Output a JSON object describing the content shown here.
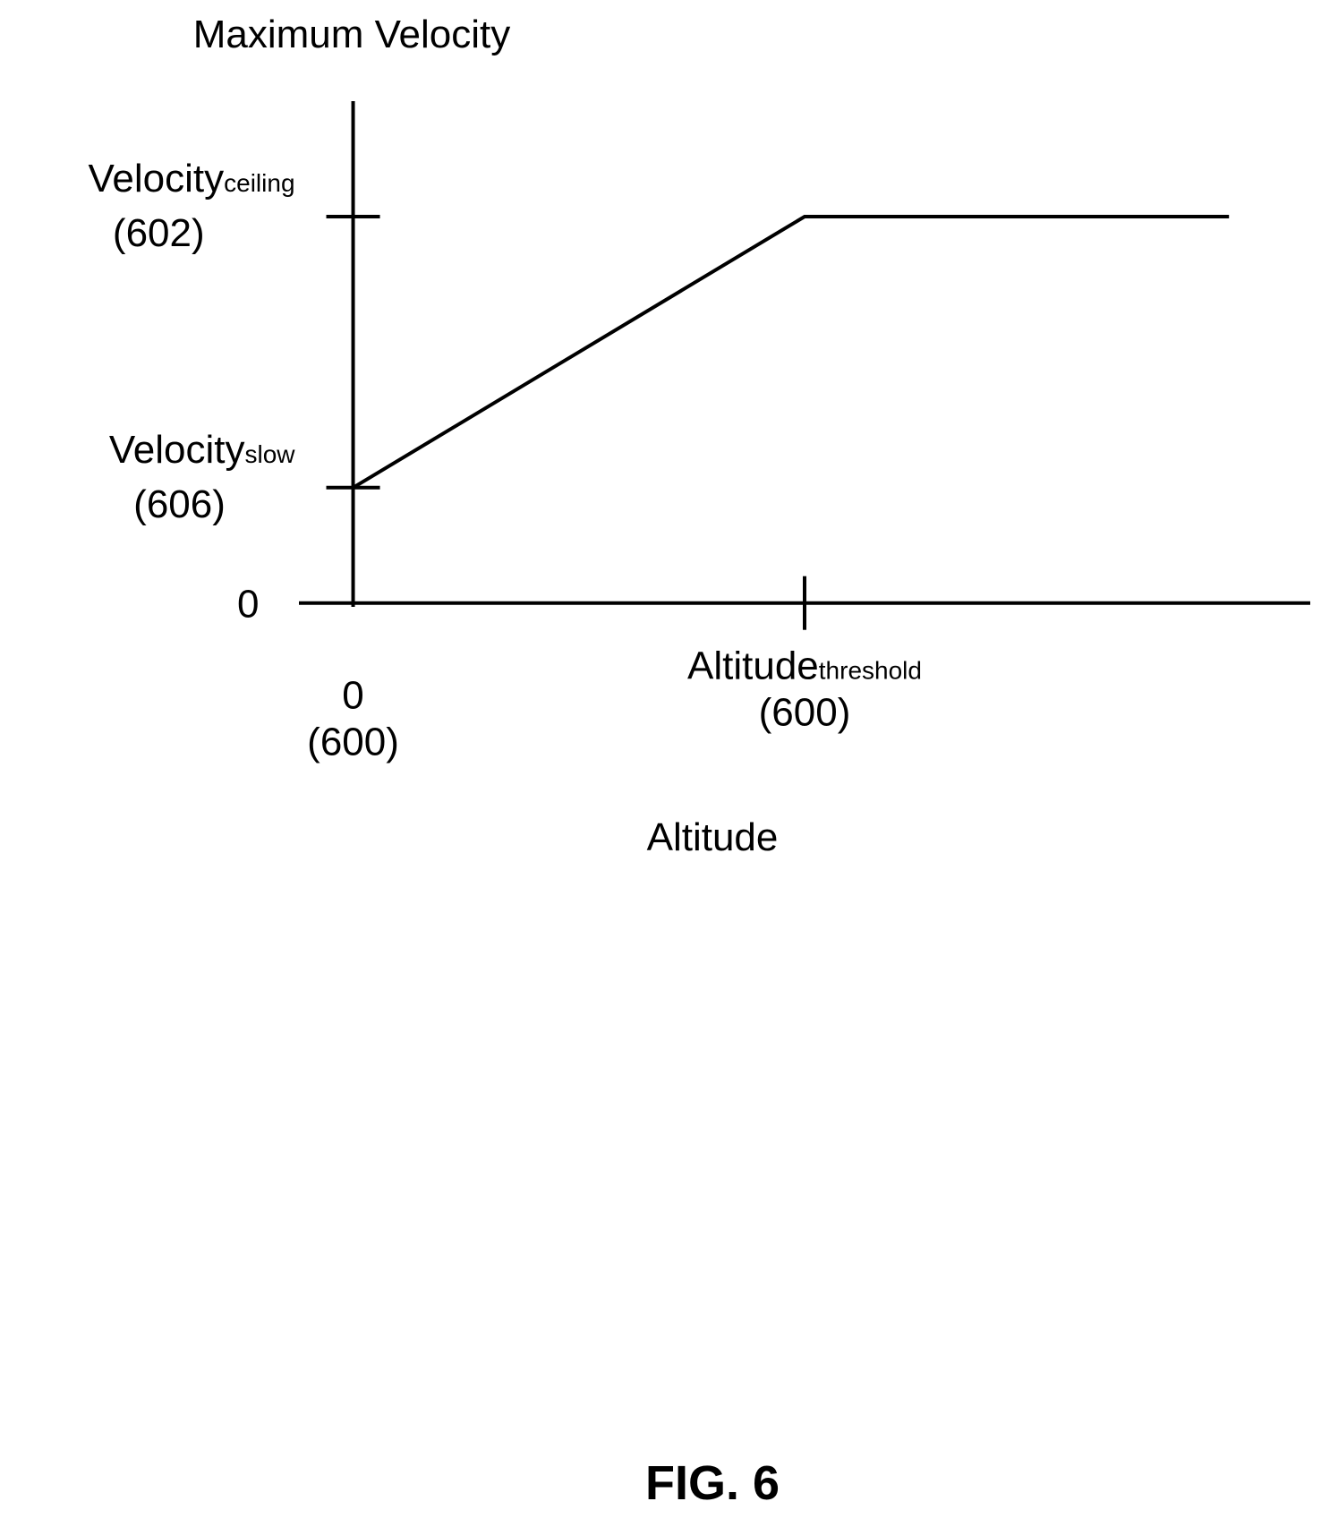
{
  "chart_data": {
    "type": "line",
    "title": "",
    "ylabel": "Maximum Velocity",
    "xlabel": "Altitude",
    "y_ticks": [
      {
        "value": 0,
        "label": "0",
        "sub": "",
        "ref": ""
      },
      {
        "value": 0.23,
        "label": "Velocity",
        "sub": "slow",
        "ref": "(606)"
      },
      {
        "value": 0.77,
        "label": "Velocity",
        "sub": "ceiling",
        "ref": "(602)"
      }
    ],
    "x_ticks": [
      {
        "value": 0,
        "label": "0",
        "sub": "",
        "ref": "(600)"
      },
      {
        "value": 1,
        "label": "Altitude",
        "sub": "threshold",
        "ref": "(600)"
      }
    ],
    "series": [
      {
        "points": [
          [
            0,
            0.23
          ],
          [
            1,
            0.77
          ],
          [
            1.94,
            0.77
          ]
        ]
      }
    ],
    "xlim": [
      -0.12,
      2.12
    ],
    "ylim": [
      -0.12,
      1
    ]
  },
  "figure_label": "FIG. 6"
}
